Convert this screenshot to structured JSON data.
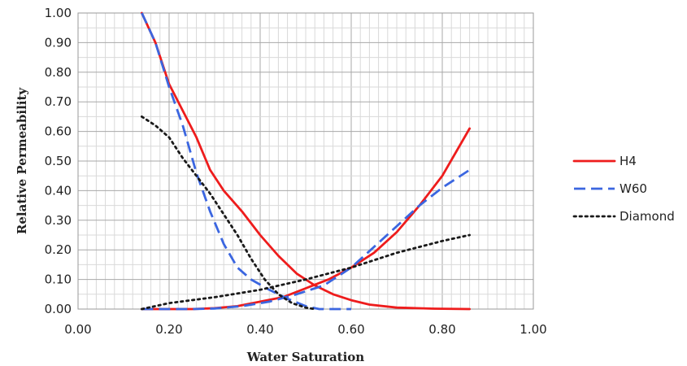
{
  "chart_data": {
    "type": "line",
    "xlabel": "Water Saturation",
    "ylabel": "Relative Permeability",
    "xlim": [
      0,
      1
    ],
    "ylim": [
      0,
      1
    ],
    "x_ticks": [
      "0.00",
      "0.20",
      "0.40",
      "0.60",
      "0.80",
      "1.00"
    ],
    "y_ticks": [
      "0.00",
      "0.10",
      "0.20",
      "0.30",
      "0.40",
      "0.50",
      "0.60",
      "0.70",
      "0.80",
      "0.90",
      "1.00"
    ],
    "grid": true,
    "legend_position": "right",
    "series": [
      {
        "name": "H4",
        "color": "#ee1c1c",
        "dash": "solid",
        "curves": [
          [
            [
              0.14,
              1.0
            ],
            [
              0.17,
              0.9
            ],
            [
              0.2,
              0.76
            ],
            [
              0.23,
              0.67
            ],
            [
              0.26,
              0.58
            ],
            [
              0.29,
              0.47
            ],
            [
              0.32,
              0.4
            ],
            [
              0.36,
              0.33
            ],
            [
              0.4,
              0.25
            ],
            [
              0.44,
              0.18
            ],
            [
              0.48,
              0.12
            ],
            [
              0.52,
              0.08
            ],
            [
              0.56,
              0.05
            ],
            [
              0.6,
              0.03
            ],
            [
              0.64,
              0.015
            ],
            [
              0.7,
              0.005
            ],
            [
              0.78,
              0.0015
            ],
            [
              0.86,
              0.0
            ]
          ],
          [
            [
              0.14,
              0.0
            ],
            [
              0.25,
              0.0
            ],
            [
              0.3,
              0.003
            ],
            [
              0.35,
              0.01
            ],
            [
              0.4,
              0.025
            ],
            [
              0.45,
              0.04
            ],
            [
              0.5,
              0.07
            ],
            [
              0.55,
              0.1
            ],
            [
              0.6,
              0.14
            ],
            [
              0.65,
              0.19
            ],
            [
              0.7,
              0.26
            ],
            [
              0.75,
              0.35
            ],
            [
              0.8,
              0.45
            ],
            [
              0.86,
              0.61
            ]
          ]
        ]
      },
      {
        "name": "W60",
        "color": "#3b66e0",
        "dash": "dashed",
        "curves": [
          [
            [
              0.14,
              1.0
            ],
            [
              0.17,
              0.9
            ],
            [
              0.2,
              0.75
            ],
            [
              0.23,
              0.62
            ],
            [
              0.26,
              0.46
            ],
            [
              0.29,
              0.33
            ],
            [
              0.32,
              0.22
            ],
            [
              0.35,
              0.14
            ],
            [
              0.38,
              0.1
            ],
            [
              0.42,
              0.065
            ],
            [
              0.46,
              0.035
            ],
            [
              0.5,
              0.01
            ],
            [
              0.53,
              0.0
            ],
            [
              0.6,
              0.0
            ]
          ],
          [
            [
              0.14,
              0.0
            ],
            [
              0.25,
              0.0
            ],
            [
              0.3,
              0.002
            ],
            [
              0.36,
              0.01
            ],
            [
              0.42,
              0.025
            ],
            [
              0.48,
              0.05
            ],
            [
              0.54,
              0.08
            ],
            [
              0.6,
              0.14
            ],
            [
              0.65,
              0.21
            ],
            [
              0.7,
              0.28
            ],
            [
              0.75,
              0.35
            ],
            [
              0.8,
              0.41
            ],
            [
              0.86,
              0.47
            ]
          ]
        ]
      },
      {
        "name": "Diamond",
        "color": "#1a1a1a",
        "dash": "dotted",
        "curves": [
          [
            [
              0.14,
              0.65
            ],
            [
              0.17,
              0.62
            ],
            [
              0.2,
              0.58
            ],
            [
              0.23,
              0.51
            ],
            [
              0.26,
              0.45
            ],
            [
              0.29,
              0.39
            ],
            [
              0.32,
              0.32
            ],
            [
              0.35,
              0.25
            ],
            [
              0.38,
              0.17
            ],
            [
              0.41,
              0.1
            ],
            [
              0.44,
              0.05
            ],
            [
              0.47,
              0.02
            ],
            [
              0.5,
              0.005
            ],
            [
              0.52,
              0.0
            ]
          ],
          [
            [
              0.14,
              0.0
            ],
            [
              0.2,
              0.02
            ],
            [
              0.3,
              0.04
            ],
            [
              0.4,
              0.065
            ],
            [
              0.5,
              0.1
            ],
            [
              0.6,
              0.14
            ],
            [
              0.7,
              0.19
            ],
            [
              0.8,
              0.23
            ],
            [
              0.86,
              0.25
            ]
          ]
        ]
      }
    ]
  }
}
